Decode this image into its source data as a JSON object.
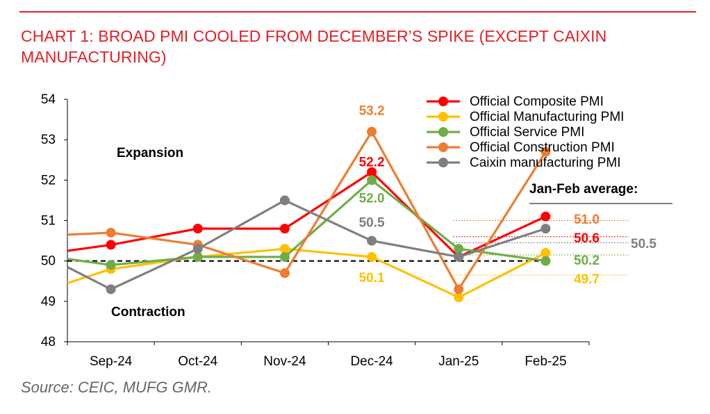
{
  "title": "CHART 1: BROAD PMI COOLED FROM DECEMBER’S SPIKE (EXCEPT CAIXIN MANUFACTURING)",
  "source": "Source: CEIC, MUFG GMR.",
  "chart_data": {
    "type": "line",
    "categories": [
      "Sep-24",
      "Oct-24",
      "Nov-24",
      "Dec-24",
      "Jan-25",
      "Feb-25"
    ],
    "ylim": [
      48,
      54
    ],
    "yticks": [
      48,
      49,
      50,
      51,
      52,
      53,
      54
    ],
    "grid": false,
    "legend_position": "top-right",
    "threshold": 50,
    "series": [
      {
        "name": "Official Composite PMI",
        "color": "#ff0000",
        "start": 50.25,
        "values": [
          50.4,
          50.8,
          50.8,
          52.2,
          50.1,
          51.1
        ]
      },
      {
        "name": "Official Manufacturing PMI",
        "color": "#ffc000",
        "start": 49.45,
        "values": [
          49.8,
          50.1,
          50.3,
          50.1,
          49.1,
          50.2
        ]
      },
      {
        "name": "Official Service PMI",
        "color": "#70ad47",
        "start": 50.05,
        "values": [
          49.9,
          50.1,
          50.1,
          52.0,
          50.3,
          50.0
        ]
      },
      {
        "name": "Official Construction PMI",
        "color": "#ed7d31",
        "start": 50.65,
        "values": [
          50.7,
          50.4,
          49.7,
          53.2,
          49.3,
          52.7
        ]
      },
      {
        "name": "Caixin manufacturing PMI",
        "color": "#7f7f7f",
        "start": 49.85,
        "values": [
          49.3,
          50.3,
          51.5,
          50.5,
          50.1,
          50.8
        ]
      }
    ],
    "annotations": {
      "expansion": "Expansion",
      "contraction": "Contraction",
      "avg_title": "Jan-Feb average:",
      "point_labels": [
        {
          "text": "53.2",
          "series": 3,
          "index": 3
        },
        {
          "text": "52.2",
          "series": 0,
          "index": 3
        },
        {
          "text": "52.0",
          "series": 2,
          "index": 3
        },
        {
          "text": "50.5",
          "series": 4,
          "index": 3
        },
        {
          "text": "50.1",
          "series": 1,
          "index": 3
        }
      ],
      "averages": [
        {
          "text": "51.0",
          "series": 3,
          "value": 51.0
        },
        {
          "text": "50.6",
          "series": 0,
          "value": 50.6
        },
        {
          "text": "50.5",
          "series": 4,
          "value": 50.45
        },
        {
          "text": "50.2",
          "series": 2,
          "value": 50.15
        },
        {
          "text": "49.7",
          "series": 1,
          "value": 49.65
        }
      ]
    }
  }
}
